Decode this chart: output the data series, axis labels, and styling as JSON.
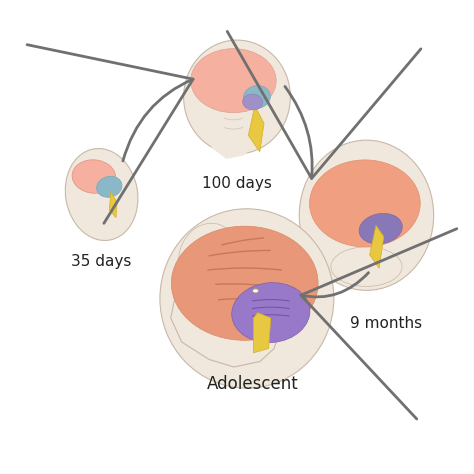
{
  "background_color": "#ffffff",
  "skin_color": "#f0e8dc",
  "skin_edge_color": "#c8b8a8",
  "brain_pink_light": "#f5b0a0",
  "brain_pink": "#f0a080",
  "brain_salmon": "#e89878",
  "teal_color": "#8ab8c8",
  "purple_color": "#a090c8",
  "purple_dark": "#8878b8",
  "yellow_color": "#e8c840",
  "yellow_dark": "#d4b020",
  "arrow_color": "#707070",
  "text_color": "#222222",
  "stages": [
    "35 days",
    "100 days",
    "9 months",
    "Adolescent"
  ],
  "font_size": 11,
  "font_size_adol": 12
}
